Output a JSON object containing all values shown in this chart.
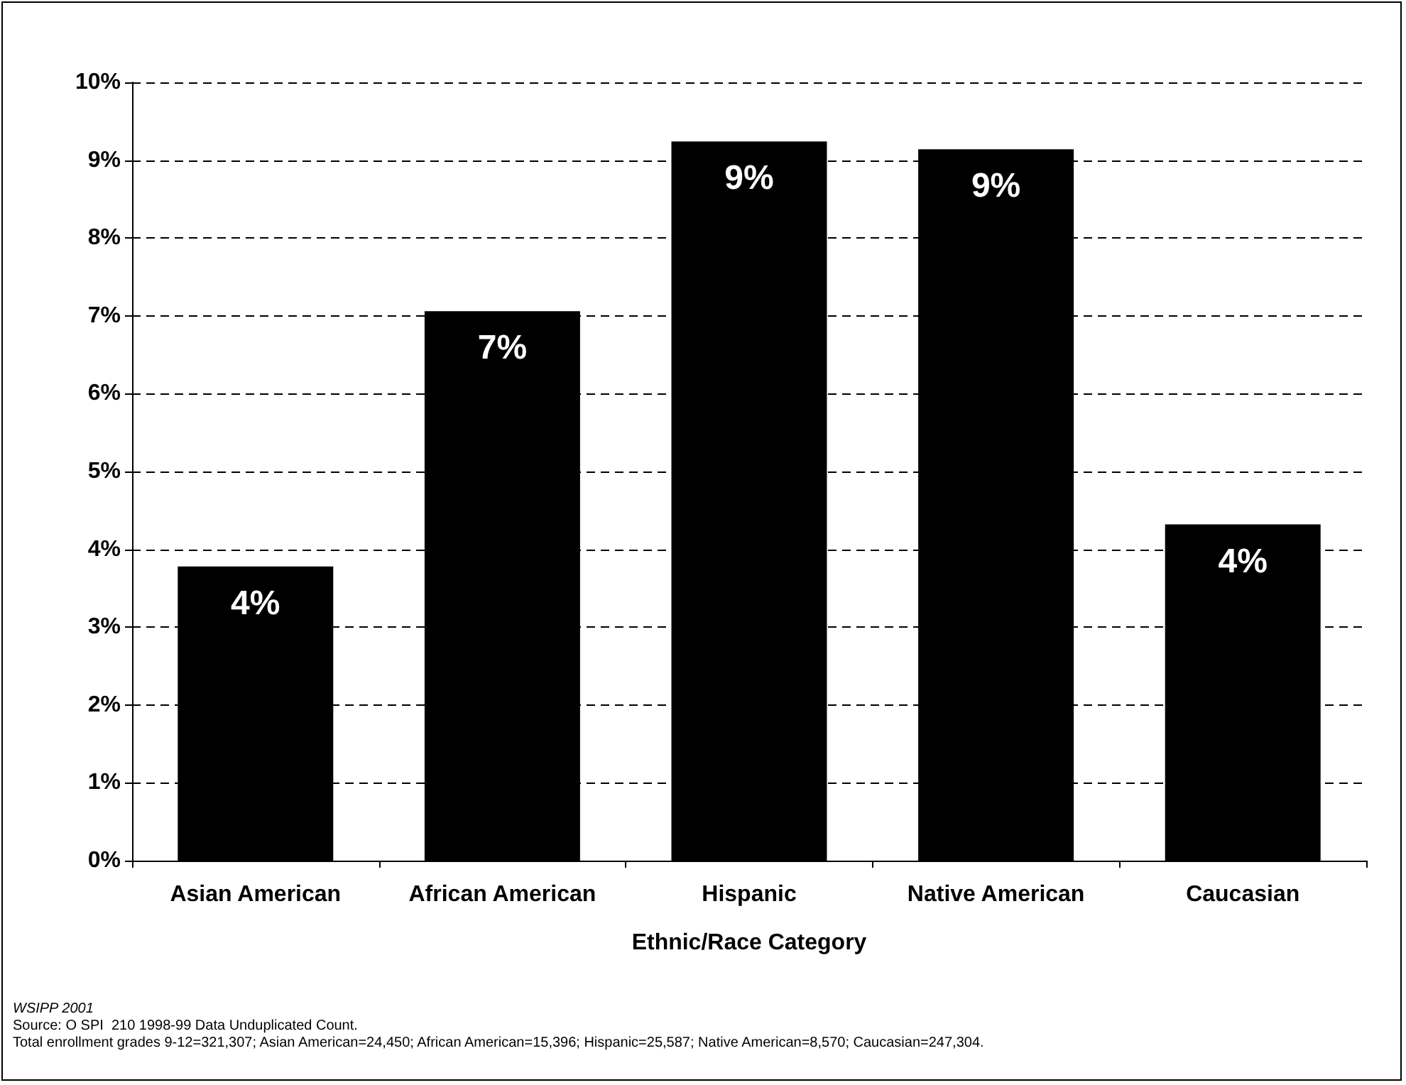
{
  "chart_data": {
    "type": "bar",
    "xlabel": "Ethnic/Race Category",
    "categories": [
      "Asian American",
      "African American",
      "Hispanic",
      "Native American",
      "Caucasian"
    ],
    "values": [
      3.78,
      7.06,
      9.24,
      9.14,
      4.32
    ],
    "color": "#000000",
    "value_labels": [
      "4%",
      "7%",
      "9%",
      "9%",
      "4%"
    ],
    "ylim": [
      0,
      10
    ],
    "yticks": [
      {
        "value": 0,
        "label": "0%"
      },
      {
        "value": 1,
        "label": "1%"
      },
      {
        "value": 2,
        "label": "2%"
      },
      {
        "value": 3,
        "label": "3%"
      },
      {
        "value": 4,
        "label": "4%"
      },
      {
        "value": 5,
        "label": "5%"
      },
      {
        "value": 6,
        "label": "6%"
      },
      {
        "value": 7,
        "label": "7%"
      },
      {
        "value": 8,
        "label": "8%"
      },
      {
        "value": 9,
        "label": "9%"
      },
      {
        "value": 10,
        "label": "10%"
      }
    ],
    "grid": "y",
    "annotations": [
      "WSIPP 2001",
      "Source: O SPI  210 1998-99 Data Unduplicated Count.",
      "Total enrollment grades 9-12=321,307; Asian American=24,450; African American=15,396; Hispanic=25,587; Native American=8,570; Caucasian=247,304."
    ]
  }
}
